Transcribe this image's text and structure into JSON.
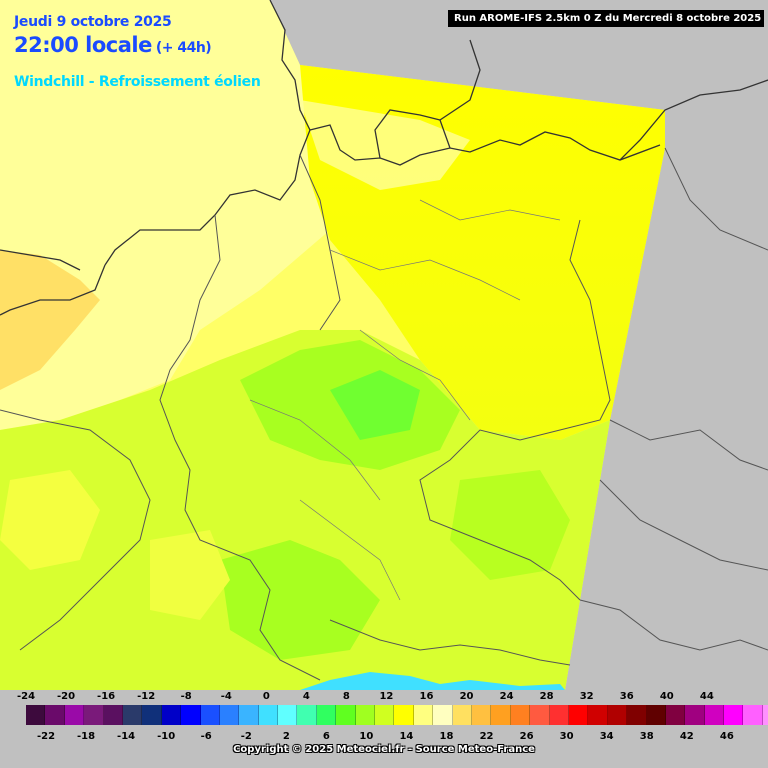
{
  "header": {
    "date": "Jeudi 9 octobre 2025",
    "time": "22:00 locale",
    "offset": "(+ 44h)",
    "parameter": "Windchill - Refroissement éolien",
    "run": "Run AROME-IFS 2.5km 0 Z du Mercredi 8 octobre 2025"
  },
  "legend": {
    "top_labels": [
      "-24",
      "-20",
      "-16",
      "-12",
      "-8",
      "-4",
      "0",
      "4",
      "8",
      "12",
      "16",
      "20",
      "24",
      "28",
      "32",
      "36",
      "40",
      "44"
    ],
    "bottom_labels": [
      "-22",
      "-18",
      "-14",
      "-10",
      "-6",
      "-2",
      "2",
      "6",
      "10",
      "14",
      "18",
      "22",
      "26",
      "30",
      "34",
      "38",
      "42",
      "46"
    ],
    "colors": [
      "#3d0a3d",
      "#6a0a6a",
      "#9a0aa8",
      "#7a1a7a",
      "#5a1060",
      "#2a3a6a",
      "#10307a",
      "#0000c8",
      "#0000ff",
      "#1a50ff",
      "#2a80ff",
      "#3ab4ff",
      "#40e0ff",
      "#60ffff",
      "#40ffb0",
      "#30ff60",
      "#60ff20",
      "#a0ff20",
      "#d0ff20",
      "#ffff00",
      "#ffff80",
      "#ffffc0",
      "#ffe060",
      "#ffc040",
      "#ffa020",
      "#ff8020",
      "#ff5a40",
      "#ff3030",
      "#ff0000",
      "#d00000",
      "#b00000",
      "#800000",
      "#600000",
      "#800040",
      "#a00080",
      "#d000c0",
      "#ff00ff",
      "#ff60ff",
      "#ff90ff"
    ]
  },
  "copyright": "Copyright © 2025 Meteociel.fr - Source Meteo-France"
}
